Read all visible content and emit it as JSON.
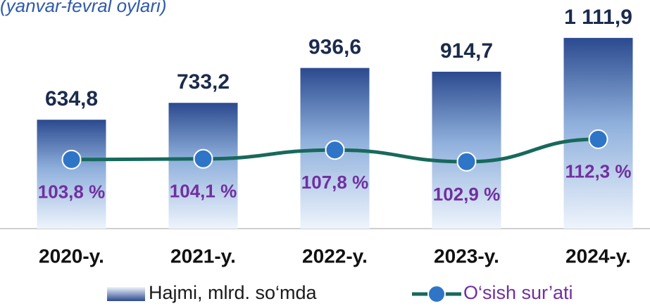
{
  "chart_data": {
    "type": "bar_line",
    "title": "(yanvar-fevral oylari)",
    "categories": [
      "2020-y.",
      "2021-y.",
      "2022-y.",
      "2023-y.",
      "2024-y."
    ],
    "series": [
      {
        "name": "Hajmi, mlrd. so‘mda",
        "color": "#2e4a8c",
        "type": "bar",
        "values": [
          634.8,
          733.2,
          936.6,
          914.7,
          1111.9
        ],
        "value_labels": [
          "634,8",
          "733,2",
          "936,6",
          "914,7",
          "1 111,9"
        ]
      },
      {
        "name": "O‘sish sur’ati",
        "color": "#17695c",
        "type": "line",
        "axis": "y2",
        "values": [
          103.8,
          104.1,
          107.8,
          102.9,
          112.3
        ],
        "value_labels": [
          "103,8 %",
          "104,1 %",
          "107,8 %",
          "102,9 %",
          "112,3 %"
        ]
      }
    ],
    "ylim": [
      0,
      1300
    ],
    "y2lim": [
      75,
      168
    ]
  }
}
